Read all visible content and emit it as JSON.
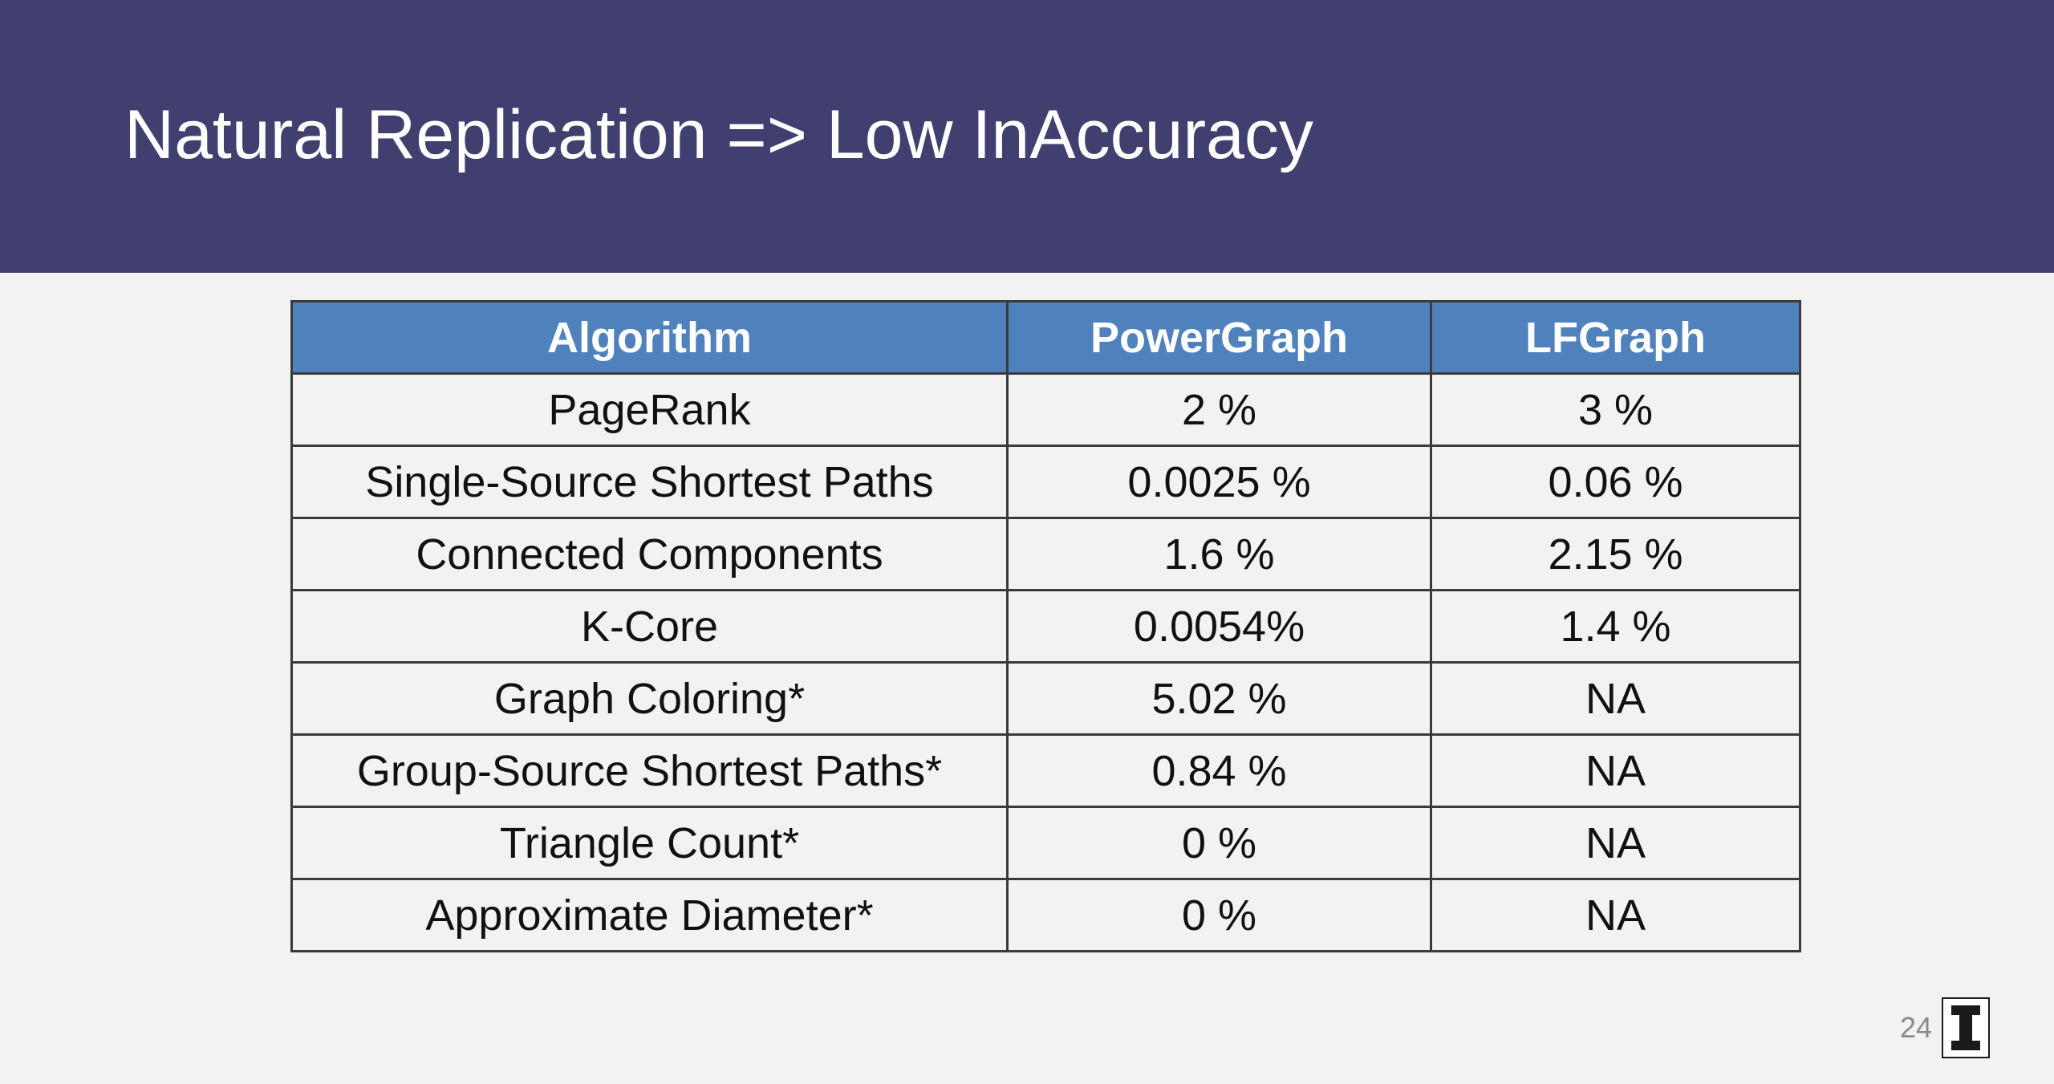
{
  "slide": {
    "title": "Natural Replication => Low InAccuracy",
    "page_number": "24"
  },
  "table": {
    "headers": [
      "Algorithm",
      "PowerGraph",
      "LFGraph"
    ],
    "rows": [
      [
        "PageRank",
        "2 %",
        "3 %"
      ],
      [
        "Single-Source Shortest Paths",
        "0.0025 %",
        "0.06 %"
      ],
      [
        "Connected Components",
        "1.6 %",
        "2.15 %"
      ],
      [
        "K-Core",
        "0.0054%",
        "1.4 %"
      ],
      [
        "Graph Coloring*",
        "5.02 %",
        "NA"
      ],
      [
        "Group-Source Shortest Paths*",
        "0.84 %",
        "NA"
      ],
      [
        "Triangle Count*",
        "0 %",
        "NA"
      ],
      [
        "Approximate Diameter*",
        "0 %",
        "NA"
      ]
    ]
  },
  "colors": {
    "header_band": "#413f6f",
    "table_header": "#4f81bd",
    "background": "#f2f2f2"
  },
  "logo_icon": "block-i-logo-icon"
}
